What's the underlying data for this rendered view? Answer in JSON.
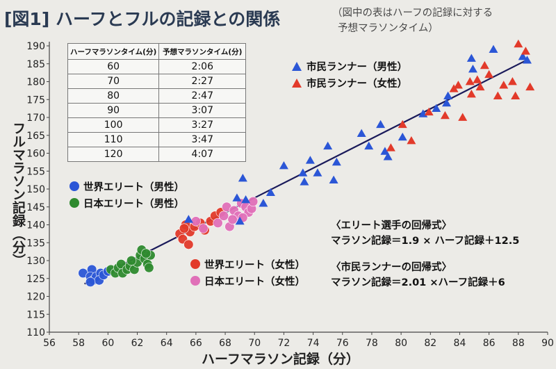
{
  "header": {
    "figure_label": "[図1]",
    "title": "ハーフとフルの記録との関係",
    "note_line1": "（図中の表はハーフの記録に対する",
    "note_line2": "予想マラソンタイム）"
  },
  "table": {
    "headers": [
      "ハーフマラソンタイム(分)",
      "予想マラソンタイム(分)"
    ],
    "rows": [
      [
        "60",
        "2:06"
      ],
      [
        "70",
        "2:27"
      ],
      [
        "80",
        "2:47"
      ],
      [
        "90",
        "3:07"
      ],
      [
        "100",
        "3:27"
      ],
      [
        "110",
        "3:47"
      ],
      [
        "120",
        "4:07"
      ]
    ]
  },
  "legend_circles": [
    {
      "label": "世界エリート（男性）",
      "color": "#2b56d6"
    },
    {
      "label": "日本エリート（男性）",
      "color": "#2e8a2e"
    }
  ],
  "legend_circles_female": [
    {
      "label": "世界エリート（女性）",
      "color": "#e23a2a"
    },
    {
      "label": "日本エリート（女性）",
      "color": "#e070b8"
    }
  ],
  "legend_triangles": [
    {
      "label": "市民ランナー（男性）",
      "color": "#2b56d6"
    },
    {
      "label": "市民ランナー（女性）",
      "color": "#e23a2a"
    }
  ],
  "formulas": {
    "elite_title": "〈エリート選手の回帰式〉",
    "elite_eq": "マラソン記録＝1.9 × ハーフ記録＋12.5",
    "citizen_title": "〈市民ランナーの回帰式〉",
    "citizen_eq": "マラソン記録＝2.01 ×ハーフ記録＋6"
  },
  "chart_data": {
    "type": "scatter",
    "xlabel": "ハーフマラソン記録（分）",
    "ylabel": "フルマラソン記録（分）",
    "xlim": [
      56,
      90
    ],
    "ylim": [
      110,
      190
    ],
    "xticks": [
      56,
      58,
      60,
      62,
      64,
      66,
      68,
      70,
      72,
      74,
      76,
      78,
      80,
      82,
      84,
      86,
      88,
      90
    ],
    "yticks": [
      110,
      115,
      120,
      125,
      130,
      135,
      140,
      145,
      150,
      155,
      160,
      165,
      170,
      175,
      180,
      185,
      190
    ],
    "grid": false,
    "regression_line": {
      "x": [
        58.4,
        88.7
      ],
      "y": [
        123.5,
        186.3
      ],
      "color": "#1a1a5a"
    },
    "series": [
      {
        "name": "世界エリート（男性）",
        "marker": "circle",
        "color": "#2b56d6",
        "points": [
          [
            58.3,
            126.5
          ],
          [
            58.9,
            127.5
          ],
          [
            58.8,
            125.5
          ],
          [
            59.0,
            124.5
          ],
          [
            59.2,
            125.5
          ],
          [
            59.5,
            126.5
          ],
          [
            59.4,
            124.5
          ],
          [
            58.8,
            124.0
          ],
          [
            59.7,
            126.0
          ],
          [
            60.0,
            127.0
          ]
        ]
      },
      {
        "name": "日本エリート（男性）",
        "marker": "circle",
        "color": "#2e8a2e",
        "points": [
          [
            60.2,
            127.5
          ],
          [
            60.5,
            126.5
          ],
          [
            60.7,
            128.0
          ],
          [
            60.9,
            129.0
          ],
          [
            61.0,
            126.5
          ],
          [
            61.3,
            127.5
          ],
          [
            61.5,
            128.5
          ],
          [
            61.8,
            127.5
          ],
          [
            62.0,
            129.5
          ],
          [
            62.2,
            131.5
          ],
          [
            62.3,
            133.0
          ],
          [
            62.5,
            130.5
          ],
          [
            62.7,
            129.0
          ],
          [
            62.9,
            131.5
          ],
          [
            62.6,
            132.0
          ],
          [
            62.8,
            128.0
          ],
          [
            61.6,
            130.0
          ]
        ]
      },
      {
        "name": "世界エリート（女性）",
        "marker": "circle",
        "color": "#e23a2a",
        "points": [
          [
            64.9,
            137.5
          ],
          [
            65.1,
            136.0
          ],
          [
            65.3,
            140.0
          ],
          [
            65.5,
            134.5
          ],
          [
            65.6,
            138.0
          ],
          [
            65.9,
            139.5
          ],
          [
            66.3,
            140.5
          ],
          [
            66.6,
            138.5
          ],
          [
            67.0,
            141.0
          ],
          [
            67.3,
            142.5
          ],
          [
            67.7,
            143.5
          ],
          [
            65.2,
            139.0
          ]
        ]
      },
      {
        "name": "日本エリート（女性）",
        "marker": "circle",
        "color": "#e070b8",
        "points": [
          [
            66.0,
            141.0
          ],
          [
            66.5,
            139.0
          ],
          [
            67.5,
            140.5
          ],
          [
            67.9,
            142.5
          ],
          [
            68.1,
            145.0
          ],
          [
            68.3,
            139.5
          ],
          [
            68.6,
            144.0
          ],
          [
            68.9,
            142.5
          ],
          [
            69.1,
            146.0
          ],
          [
            69.4,
            145.0
          ],
          [
            69.6,
            143.5
          ],
          [
            69.8,
            144.5
          ],
          [
            69.9,
            146.5
          ],
          [
            68.5,
            141.5
          ],
          [
            69.2,
            142.0
          ]
        ]
      },
      {
        "name": "市民ランナー（男性）",
        "marker": "triangle",
        "color": "#2b56d6",
        "points": [
          [
            65.5,
            141.5
          ],
          [
            68.8,
            147.5
          ],
          [
            69.2,
            153.0
          ],
          [
            69.4,
            147.0
          ],
          [
            69.0,
            141.0
          ],
          [
            70.6,
            146.0
          ],
          [
            71.1,
            149.0
          ],
          [
            72.0,
            156.5
          ],
          [
            73.3,
            154.5
          ],
          [
            73.4,
            152.0
          ],
          [
            73.8,
            158.0
          ],
          [
            74.3,
            154.5
          ],
          [
            75.0,
            162.0
          ],
          [
            75.4,
            152.5
          ],
          [
            75.6,
            157.5
          ],
          [
            77.3,
            165.5
          ],
          [
            77.8,
            162.0
          ],
          [
            78.6,
            168.0
          ],
          [
            78.9,
            160.5
          ],
          [
            79.1,
            159.0
          ],
          [
            80.1,
            164.5
          ],
          [
            81.5,
            171.0
          ],
          [
            82.4,
            172.5
          ],
          [
            83.1,
            174.0
          ],
          [
            83.2,
            176.0
          ],
          [
            84.8,
            186.5
          ],
          [
            84.9,
            183.5
          ],
          [
            86.3,
            189.0
          ],
          [
            88.3,
            187.0
          ],
          [
            88.6,
            186.0
          ]
        ]
      },
      {
        "name": "市民ランナー（女性）",
        "marker": "triangle",
        "color": "#e23a2a",
        "points": [
          [
            79.3,
            161.5
          ],
          [
            80.1,
            168.0
          ],
          [
            80.7,
            163.5
          ],
          [
            81.9,
            171.5
          ],
          [
            83.0,
            170.5
          ],
          [
            83.6,
            178.0
          ],
          [
            83.9,
            179.0
          ],
          [
            84.2,
            170.0
          ],
          [
            84.7,
            180.0
          ],
          [
            84.8,
            176.5
          ],
          [
            85.2,
            180.5
          ],
          [
            85.4,
            178.5
          ],
          [
            85.7,
            184.5
          ],
          [
            86.0,
            182.0
          ],
          [
            86.6,
            176.0
          ],
          [
            87.0,
            179.0
          ],
          [
            87.6,
            180.0
          ],
          [
            87.8,
            176.0
          ],
          [
            88.0,
            190.5
          ],
          [
            88.5,
            188.5
          ],
          [
            88.8,
            178.5
          ]
        ]
      }
    ]
  }
}
